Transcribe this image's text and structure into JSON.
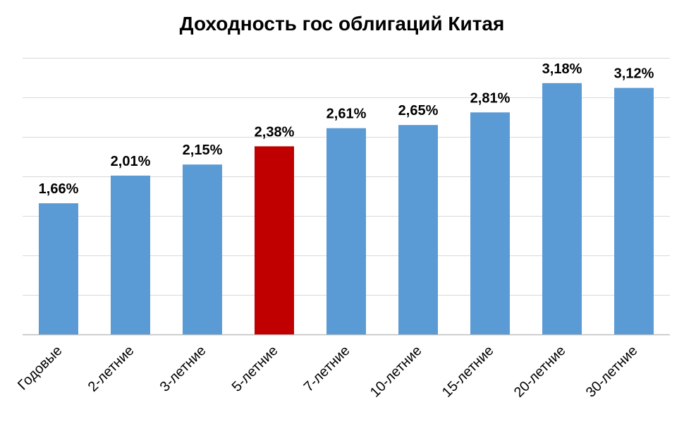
{
  "chart_data": {
    "type": "bar",
    "title": "Доходность гос облигаций Китая",
    "categories": [
      "Годовые",
      "2-летние",
      "3-летние",
      "5-летние",
      "7-летние",
      "10-летние",
      "15-летние",
      "20-летние",
      "30-летние"
    ],
    "values": [
      1.66,
      2.01,
      2.15,
      2.38,
      2.61,
      2.65,
      2.81,
      3.18,
      3.12
    ],
    "data_labels": [
      "1,66%",
      "2,01%",
      "2,15%",
      "2,38%",
      "2,61%",
      "2,65%",
      "2,81%",
      "3,18%",
      "3,12%"
    ],
    "highlight_index": 3,
    "ylim": [
      0,
      3.5
    ],
    "y_gridline_step": 0.5,
    "grid": true,
    "y_tick_labels_visible": false,
    "legend": "none",
    "colors": {
      "bar": "#5b9bd5",
      "highlight": "#c00000"
    }
  }
}
